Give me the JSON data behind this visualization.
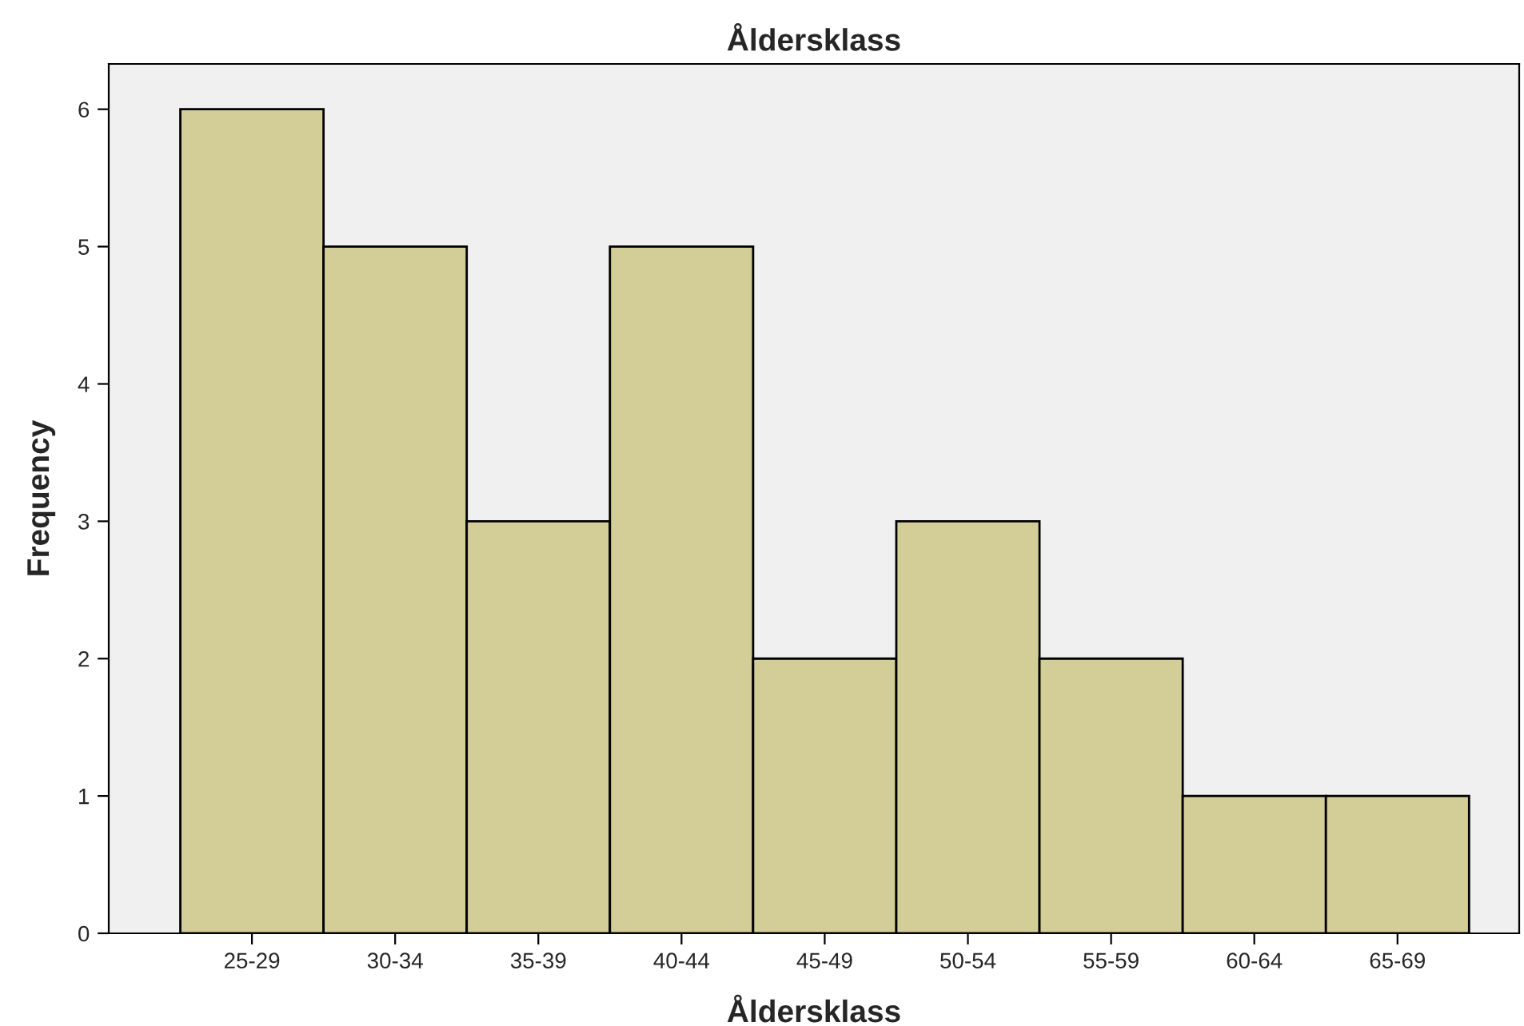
{
  "chart_data": {
    "type": "bar",
    "title": "Åldersklass",
    "xlabel": "Åldersklass",
    "ylabel": "Frequency",
    "categories": [
      "25-29",
      "30-34",
      "35-39",
      "40-44",
      "45-49",
      "50-54",
      "55-59",
      "60-64",
      "65-69"
    ],
    "values": [
      6,
      5,
      3,
      5,
      2,
      3,
      2,
      1,
      1
    ],
    "color": "#d3ce98",
    "ylim": [
      0,
      6.33
    ],
    "yticks": [
      0,
      1,
      2,
      3,
      4,
      5,
      6
    ],
    "grid": false,
    "legend": false
  }
}
